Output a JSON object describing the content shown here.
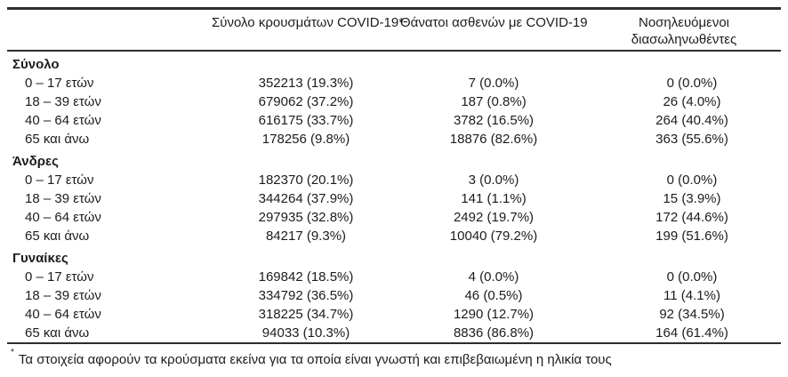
{
  "page": {
    "background": "#ffffff",
    "text_color": "#1c1c1c",
    "rule_color": "#2d2d2d"
  },
  "table": {
    "column_headers": [
      "",
      "Σύνολο κρουσμάτων COVID-19*",
      "Θάνατοι ασθενών με COVID-19",
      "Νοσηλευόμενοι διασωληνωθέντες"
    ],
    "groups": [
      {
        "label": "Σύνολο",
        "rows": [
          {
            "label": "0 – 17 ετών",
            "cases": "352213 (19.3%)",
            "deaths": "7 (0.0%)",
            "intubated": "0 (0.0%)"
          },
          {
            "label": "18 – 39 ετών",
            "cases": "679062 (37.2%)",
            "deaths": "187 (0.8%)",
            "intubated": "26 (4.0%)"
          },
          {
            "label": "40 – 64 ετών",
            "cases": "616175 (33.7%)",
            "deaths": "3782 (16.5%)",
            "intubated": "264 (40.4%)"
          },
          {
            "label": "65 και άνω",
            "cases": "178256 (9.8%)",
            "deaths": "18876 (82.6%)",
            "intubated": "363 (55.6%)"
          }
        ]
      },
      {
        "label": "Άνδρες",
        "rows": [
          {
            "label": "0 – 17 ετών",
            "cases": "182370 (20.1%)",
            "deaths": "3 (0.0%)",
            "intubated": "0 (0.0%)"
          },
          {
            "label": "18 – 39 ετών",
            "cases": "344264 (37.9%)",
            "deaths": "141 (1.1%)",
            "intubated": "15 (3.9%)"
          },
          {
            "label": "40 – 64 ετών",
            "cases": "297935 (32.8%)",
            "deaths": "2492 (19.7%)",
            "intubated": "172 (44.6%)"
          },
          {
            "label": "65 και άνω",
            "cases": "84217 (9.3%)",
            "deaths": "10040 (79.2%)",
            "intubated": "199 (51.6%)"
          }
        ]
      },
      {
        "label": "Γυναίκες",
        "rows": [
          {
            "label": "0 – 17 ετών",
            "cases": "169842 (18.5%)",
            "deaths": "4 (0.0%)",
            "intubated": "0 (0.0%)"
          },
          {
            "label": "18 – 39 ετών",
            "cases": "334792 (36.5%)",
            "deaths": "46 (0.5%)",
            "intubated": "11 (4.1%)"
          },
          {
            "label": "40 – 64 ετών",
            "cases": "318225 (34.7%)",
            "deaths": "1290 (12.7%)",
            "intubated": "92 (34.5%)"
          },
          {
            "label": "65 και άνω",
            "cases": "94033 (10.3%)",
            "deaths": "8836 (86.8%)",
            "intubated": "164 (61.4%)"
          }
        ]
      }
    ],
    "footnote": {
      "marker": "*",
      "text": "Τα στοιχεία αφορούν τα κρούσματα εκείνα για τα οποία είναι γνωστή και επιβεβαιωμένη η ηλικία τους"
    }
  }
}
